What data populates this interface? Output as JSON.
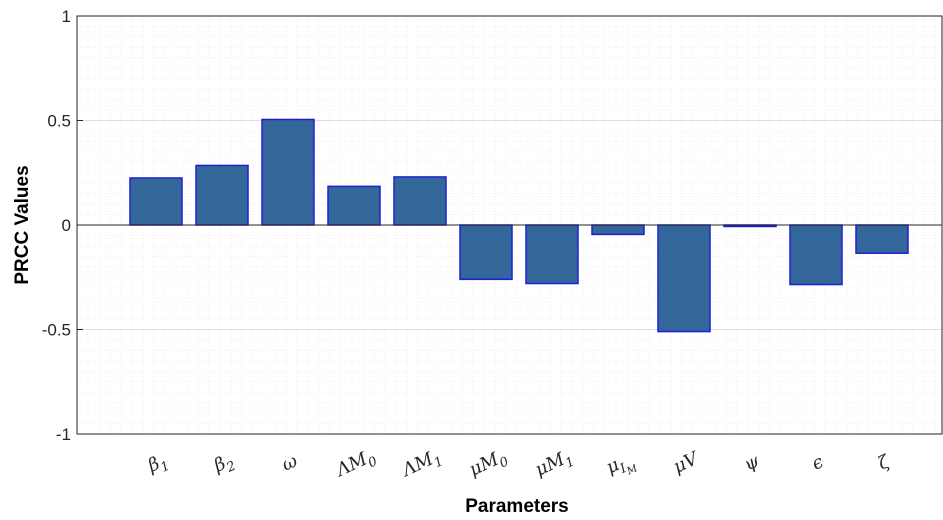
{
  "chart_data": {
    "type": "bar",
    "title": "",
    "xlabel": "Parameters",
    "ylabel": "PRCC Values",
    "ylim": [
      -1,
      1
    ],
    "yticks": [
      -1,
      -0.5,
      0,
      0.5,
      1
    ],
    "ytick_labels": [
      "-1",
      "-0.5",
      "0",
      "0.5",
      "1"
    ],
    "grid": "on (major and minor)",
    "categories": [
      "β1",
      "β2",
      "ω",
      "ΛM0",
      "ΛM1",
      "μM0",
      "μM1",
      "μIM",
      "μV",
      "ψ",
      "ϵ",
      "ζ"
    ],
    "category_labels": [
      {
        "main": "β",
        "sub": "1",
        "subsub": ""
      },
      {
        "main": "β",
        "sub": "2",
        "subsub": ""
      },
      {
        "main": "ω",
        "sub": "",
        "subsub": ""
      },
      {
        "main": "ΛM",
        "sub": "0",
        "subsub": ""
      },
      {
        "main": "ΛM",
        "sub": "1",
        "subsub": ""
      },
      {
        "main": "μM",
        "sub": "0",
        "subsub": ""
      },
      {
        "main": "μM",
        "sub": "1",
        "subsub": ""
      },
      {
        "main": "μ",
        "sub": "I",
        "subsub": "M"
      },
      {
        "main": "μV",
        "sub": "",
        "subsub": ""
      },
      {
        "main": "ψ",
        "sub": "",
        "subsub": ""
      },
      {
        "main": "ϵ",
        "sub": "",
        "subsub": ""
      },
      {
        "main": "ζ",
        "sub": "",
        "subsub": ""
      }
    ],
    "values": [
      0.225,
      0.285,
      0.505,
      0.185,
      0.23,
      -0.26,
      -0.28,
      -0.045,
      -0.51,
      -0.005,
      -0.285,
      -0.135
    ],
    "bar_fill": "#336699",
    "bar_edge": "#1f1fd6"
  }
}
